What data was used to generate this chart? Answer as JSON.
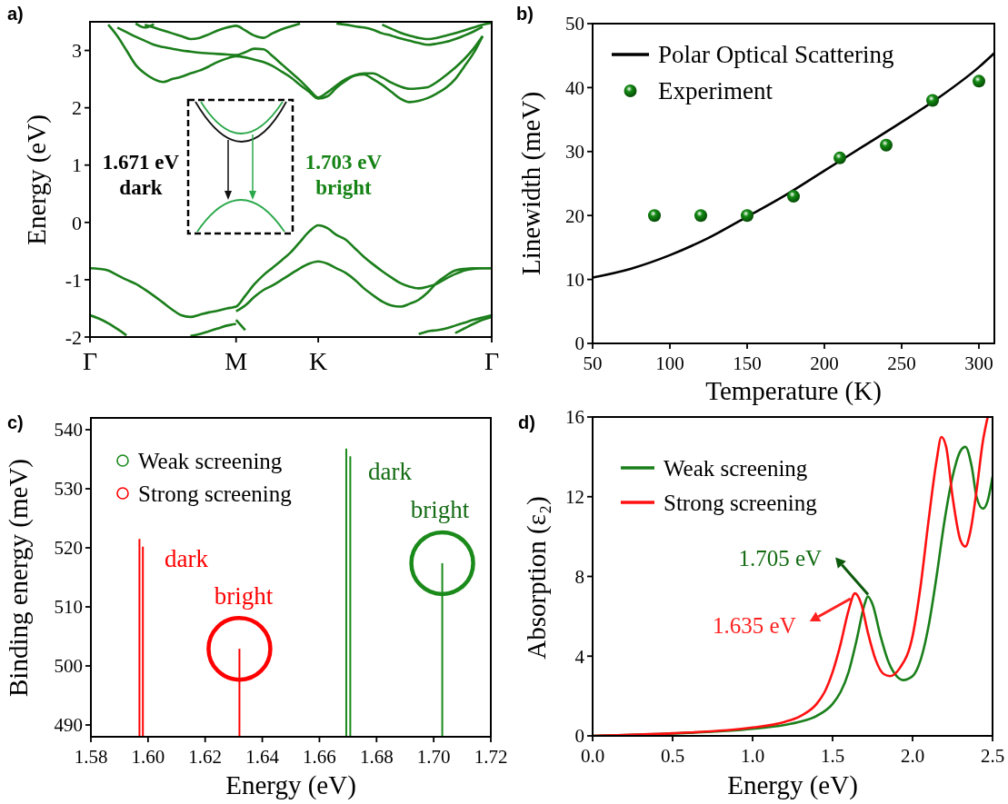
{
  "chart_data": [
    {
      "type": "line",
      "title": "a)",
      "ylabel": "Energy (eV)",
      "ylim": [
        -2,
        3.5
      ],
      "categories": [
        "Γ",
        null,
        null,
        null,
        null,
        null,
        null,
        null,
        null,
        null,
        null,
        null,
        null,
        null,
        null,
        null,
        "M",
        null,
        null,
        null,
        null,
        null,
        null,
        null,
        null,
        "K",
        null,
        null,
        null,
        null,
        null,
        null,
        null,
        null,
        null,
        null,
        null,
        null,
        null,
        null,
        null,
        null,
        null,
        null,
        "Γ"
      ],
      "yticks": [
        -2,
        -1,
        0,
        1,
        2,
        3
      ],
      "legend": false,
      "annotations": [
        "1.671 eV",
        "dark",
        "1.703 eV",
        "bright"
      ],
      "series": [
        {
          "color": "#1b7e1b",
          "values": [
            -0.8,
            -0.81,
            -0.84,
            -0.92,
            -1.0,
            -1.07,
            -1.17,
            -1.28,
            -1.4,
            -1.52,
            -1.62,
            -1.65,
            -1.61,
            -1.57,
            -1.54,
            -1.5,
            -1.47,
            -1.28,
            -1.08,
            -0.92,
            -0.79,
            -0.66,
            -0.52,
            -0.34,
            -0.16,
            -0.05,
            -0.1,
            -0.22,
            -0.3,
            -0.45,
            -0.6,
            -0.73,
            -0.85,
            -0.96,
            -1.06,
            -1.12,
            -1.15,
            -1.12,
            -1.07,
            -0.98,
            -0.9,
            -0.84,
            -0.81,
            -0.8,
            -0.8
          ]
        },
        {
          "color": "#1b7e1b",
          "values": [
            null,
            null,
            null,
            null,
            null,
            null,
            null,
            null,
            null,
            null,
            null,
            null,
            null,
            null,
            null,
            null,
            -1.55,
            -1.45,
            -1.3,
            -1.18,
            -1.1,
            -1.0,
            -0.9,
            -0.8,
            -0.72,
            -0.68,
            -0.72,
            -0.8,
            -0.88,
            -1.0,
            -1.15,
            -1.27,
            -1.38,
            -1.45,
            -1.47,
            -1.42,
            -1.35,
            -1.22,
            -1.05,
            -0.93,
            -0.84,
            -0.81,
            -0.8,
            -0.8,
            -0.8
          ]
        },
        {
          "color": "#1b7e1b",
          "values": [
            -1.62,
            -1.68,
            -1.76,
            -1.86,
            -1.97,
            null,
            null,
            null,
            null,
            null,
            null,
            null,
            null,
            null,
            null,
            null,
            null,
            null,
            null,
            null,
            null,
            null,
            null,
            null,
            null,
            null,
            null,
            null,
            null,
            null,
            null,
            null,
            null,
            null,
            null,
            null,
            null,
            null,
            null,
            null,
            null,
            null,
            null,
            null,
            null
          ]
        },
        {
          "color": "#1b7e1b",
          "values": [
            null,
            null,
            null,
            null,
            null,
            null,
            null,
            null,
            null,
            null,
            null,
            -1.98,
            -1.95,
            -1.9,
            -1.85,
            -1.8,
            -1.77,
            null,
            null,
            null,
            null,
            null,
            null,
            null,
            null,
            null,
            null,
            null,
            null,
            null,
            null,
            null,
            null,
            null,
            null,
            null,
            null,
            null,
            null,
            null,
            null,
            null,
            null,
            null,
            null
          ]
        },
        {
          "color": "#1b7e1b",
          "values": [
            null,
            null,
            null,
            null,
            null,
            null,
            null,
            null,
            null,
            null,
            null,
            null,
            null,
            null,
            null,
            null,
            -1.7,
            -1.88,
            null,
            null,
            null,
            null,
            null,
            null,
            null,
            null,
            null,
            null,
            null,
            null,
            null,
            null,
            null,
            null,
            null,
            null,
            null,
            null,
            null,
            null,
            null,
            null,
            null,
            null,
            null
          ]
        },
        {
          "color": "#1b7e1b",
          "values": [
            null,
            null,
            null,
            null,
            null,
            null,
            null,
            null,
            null,
            null,
            null,
            null,
            null,
            null,
            null,
            null,
            null,
            null,
            null,
            null,
            null,
            null,
            null,
            null,
            null,
            null,
            null,
            null,
            null,
            null,
            null,
            null,
            null,
            null,
            null,
            null,
            -1.95,
            -1.9,
            -1.88,
            -1.85,
            -1.8,
            -1.75,
            -1.7,
            -1.66,
            -1.62
          ]
        },
        {
          "color": "#1b7e1b",
          "values": [
            null,
            null,
            null,
            null,
            null,
            null,
            null,
            null,
            null,
            null,
            null,
            null,
            null,
            null,
            null,
            null,
            null,
            null,
            null,
            null,
            null,
            null,
            null,
            null,
            null,
            null,
            null,
            null,
            null,
            null,
            null,
            null,
            null,
            null,
            null,
            null,
            null,
            null,
            null,
            null,
            -1.93,
            -1.85,
            -1.77,
            -1.7,
            -1.65
          ]
        },
        {
          "color": "#1b7e1b",
          "values": [
            null,
            null,
            3.45,
            3.25,
            3.0,
            2.75,
            2.6,
            2.5,
            2.45,
            2.5,
            2.54,
            2.6,
            2.65,
            2.72,
            2.8,
            2.86,
            2.9,
            2.88,
            2.84,
            2.8,
            2.73,
            2.63,
            2.53,
            2.4,
            2.28,
            2.16,
            2.2,
            2.35,
            2.47,
            2.56,
            2.58,
            2.5,
            2.4,
            2.28,
            2.16,
            2.1,
            2.12,
            2.17,
            2.25,
            2.35,
            2.5,
            2.72,
            2.95,
            3.25,
            null
          ]
        },
        {
          "color": "#1b7e1b",
          "values": [
            null,
            null,
            null,
            3.4,
            3.32,
            3.24,
            3.17,
            3.1,
            3.06,
            3.03,
            3.0,
            2.98,
            2.96,
            2.95,
            2.94,
            2.93,
            2.92,
            2.97,
            3.03,
            3.02,
            2.9,
            2.76,
            2.62,
            2.48,
            2.32,
            2.18,
            2.27,
            2.39,
            2.5,
            2.57,
            2.6,
            2.6,
            2.53,
            2.44,
            2.37,
            2.33,
            2.34,
            2.36,
            2.45,
            2.57,
            2.7,
            2.85,
            3.03,
            3.25,
            null
          ]
        },
        {
          "color": "#1b7e1b",
          "values": [
            null,
            null,
            null,
            null,
            null,
            null,
            3.45,
            3.4,
            3.35,
            3.3,
            3.25,
            3.2,
            3.22,
            3.28,
            3.35,
            3.4,
            3.43,
            3.35,
            3.26,
            3.22,
            3.3,
            3.37,
            3.42,
            3.47,
            null,
            null,
            null,
            null,
            null,
            null,
            null,
            null,
            null,
            null,
            null,
            null,
            null,
            null,
            null,
            null,
            null,
            null,
            null,
            null,
            null
          ]
        },
        {
          "color": "#1b7e1b",
          "values": [
            null,
            null,
            null,
            null,
            null,
            3.47,
            3.4,
            3.46,
            null,
            null,
            null,
            null,
            null,
            null,
            null,
            null,
            null,
            null,
            null,
            null,
            null,
            null,
            null,
            null,
            null,
            null,
            null,
            null,
            null,
            null,
            null,
            null,
            null,
            null,
            null,
            null,
            null,
            null,
            null,
            null,
            null,
            null,
            null,
            null,
            null
          ]
        },
        {
          "color": "#1b7e1b",
          "values": [
            null,
            null,
            null,
            null,
            null,
            null,
            null,
            null,
            null,
            null,
            null,
            null,
            null,
            null,
            null,
            null,
            null,
            null,
            null,
            null,
            null,
            null,
            null,
            null,
            null,
            null,
            null,
            3.47,
            3.45,
            3.42,
            3.4,
            3.36,
            3.3,
            3.26,
            3.21,
            3.17,
            3.13,
            3.1,
            3.12,
            3.15,
            3.2,
            3.26,
            3.33,
            3.41,
            null
          ]
        },
        {
          "color": "#1b7e1b",
          "values": [
            null,
            null,
            null,
            null,
            null,
            null,
            null,
            null,
            null,
            null,
            null,
            null,
            null,
            null,
            null,
            null,
            null,
            null,
            null,
            null,
            null,
            null,
            null,
            null,
            null,
            null,
            null,
            null,
            null,
            null,
            null,
            null,
            3.45,
            3.38,
            3.31,
            3.26,
            3.22,
            3.2,
            3.22,
            3.26,
            3.3,
            3.35,
            3.4,
            3.45,
            3.48
          ]
        }
      ]
    },
    {
      "type": "line",
      "title": "b)",
      "xlabel": "Temperature (K)",
      "ylabel": "Linewidth (meV)",
      "xlim": [
        50,
        310
      ],
      "ylim": [
        0,
        50
      ],
      "xticks": [
        50,
        100,
        150,
        200,
        250,
        300
      ],
      "yticks": [
        0,
        10,
        20,
        30,
        40,
        50
      ],
      "legend": "top left",
      "series": [
        {
          "name": "Polar Optical Scattering",
          "color": "#000000",
          "x": [
            50,
            75,
            100,
            125,
            150,
            175,
            200,
            225,
            250,
            275,
            300,
            310
          ],
          "values": [
            10.3,
            11.7,
            13.8,
            16.5,
            19.8,
            23.2,
            27,
            30.8,
            34.6,
            38.6,
            43.2,
            45.4
          ]
        },
        {
          "name": "Experiment",
          "type": "scatter",
          "marker": "circle",
          "color": "#138a13",
          "x": [
            90,
            120,
            150,
            180,
            210,
            240,
            270,
            300
          ],
          "values": [
            20,
            20,
            20,
            23,
            29,
            31,
            38,
            41
          ]
        }
      ]
    },
    {
      "type": "lollipop",
      "title": "c)",
      "xlabel": "Energy (eV)",
      "ylabel": "Binding energy (meV)",
      "xlim": [
        1.58,
        1.72
      ],
      "ylim": [
        488,
        542
      ],
      "xticks": [
        1.58,
        {
          "value": 1.6,
          "label": "1.60"
        },
        1.62,
        1.64,
        1.66,
        1.68,
        {
          "value": 1.7,
          "label": "1.70"
        },
        1.72
      ],
      "yticks": [
        490,
        500,
        510,
        520,
        530,
        540
      ],
      "legend": "top left",
      "annotations": [
        "dark",
        "bright",
        "dark",
        "bright"
      ],
      "series": [
        {
          "name": "Weak screening",
          "color": "#1a8a1a",
          "marker": "circle",
          "x": [
            1.703
          ],
          "values": [
            517.4
          ]
        },
        {
          "name": "Strong screening",
          "color": "#ff0000",
          "marker": "circle",
          "x": [
            1.632
          ],
          "values": [
            502.9
          ]
        },
        {
          "type": "line",
          "color": "#1a8a1a",
          "x": [
            1.6694,
            1.6694
          ],
          "values": [
            488,
            536.8
          ]
        },
        {
          "type": "line",
          "color": "#1a8a1a",
          "x": [
            1.6708,
            1.6708
          ],
          "values": [
            488,
            535.5
          ]
        },
        {
          "type": "line",
          "color": "#ff0000",
          "x": [
            1.597,
            1.597
          ],
          "values": [
            488,
            521.5
          ]
        },
        {
          "type": "line",
          "color": "#ff0000",
          "x": [
            1.5982,
            1.5982
          ],
          "values": [
            488,
            520.2
          ]
        }
      ]
    },
    {
      "type": "line",
      "title": "d)",
      "xlabel": "Energy (eV)",
      "ylabel": "Absorption (ε₂)",
      "xlim": [
        0,
        2.5
      ],
      "ylim": [
        0,
        16
      ],
      "xticks": [
        {
          "value": 0,
          "label": "0.0"
        },
        0.5,
        {
          "value": 1,
          "label": "1.0"
        },
        1.5,
        {
          "value": 2,
          "label": "2.0"
        },
        2.5
      ],
      "yticks": [
        0,
        4,
        8,
        12,
        16
      ],
      "legend": "top left",
      "annotations": [
        {
          "text": "1.705 eV",
          "x": 1.705,
          "y": 7.0
        },
        {
          "text": "1.635 eV",
          "x": 1.635,
          "y": 7.2
        }
      ],
      "series": [
        {
          "name": "Weak screening",
          "color": "#1a7f1a",
          "x": [
            0,
            0.5,
            1.0,
            1.2,
            1.3,
            1.4,
            1.5,
            1.55,
            1.6,
            1.65,
            1.7,
            1.72,
            1.75,
            1.8,
            1.85,
            1.9,
            1.94,
            2.0,
            2.05,
            2.1,
            2.15,
            2.2,
            2.25,
            2.3,
            2.33,
            2.37,
            2.4,
            2.44,
            2.47,
            2.5
          ],
          "values": [
            0,
            0.12,
            0.35,
            0.55,
            0.72,
            1.0,
            1.6,
            2.2,
            3.2,
            4.8,
            6.6,
            7.0,
            6.6,
            5.0,
            3.7,
            3.0,
            2.8,
            3.0,
            3.8,
            5.5,
            8.0,
            10.8,
            13.0,
            14.3,
            14.5,
            13.5,
            12.0,
            11.4,
            11.8,
            13.0
          ]
        },
        {
          "name": "Strong screening",
          "color": "#ff1010",
          "x": [
            0,
            0.5,
            1.0,
            1.2,
            1.3,
            1.4,
            1.45,
            1.5,
            1.55,
            1.6,
            1.64,
            1.68,
            1.72,
            1.77,
            1.82,
            1.86,
            1.92,
            2.0,
            2.05,
            2.1,
            2.15,
            2.18,
            2.21,
            2.25,
            2.3,
            2.33,
            2.36,
            2.4,
            2.44,
            2.47
          ],
          "values": [
            0,
            0.13,
            0.42,
            0.7,
            1.0,
            1.6,
            2.2,
            3.2,
            4.6,
            6.3,
            7.15,
            6.6,
            5.2,
            3.8,
            3.1,
            3.0,
            3.4,
            5.0,
            7.5,
            10.8,
            13.8,
            15.0,
            14.5,
            12.0,
            9.8,
            9.5,
            10.2,
            12.3,
            14.8,
            16.0
          ]
        }
      ]
    }
  ]
}
